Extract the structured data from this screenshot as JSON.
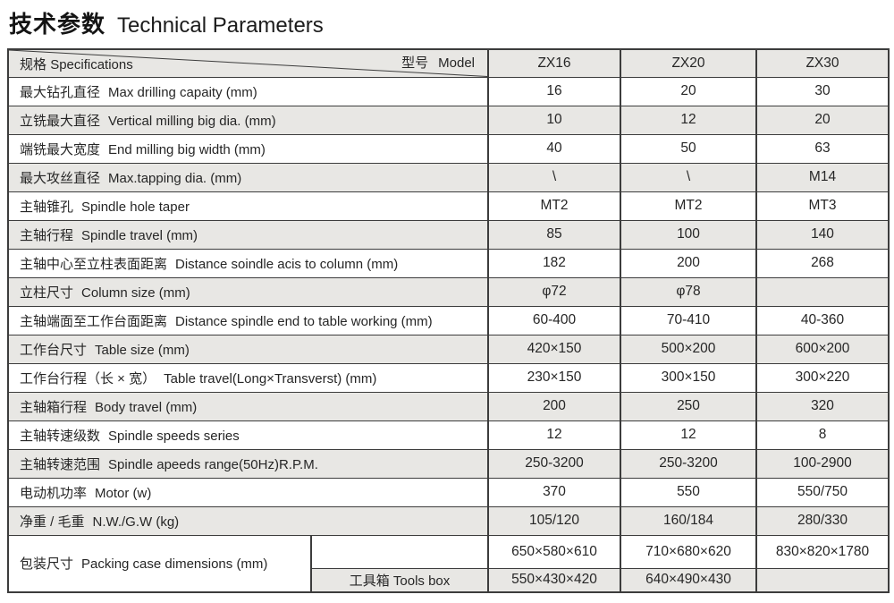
{
  "page_title": {
    "zh": "技术参数",
    "en": "Technical Parameters"
  },
  "colors": {
    "row_shade": "#e8e7e4",
    "border": "#3c3c3c",
    "text": "#262626"
  },
  "table": {
    "header": {
      "spec_zh": "规格",
      "spec_en": "Specifications",
      "model_zh": "型号",
      "model_en": "Model",
      "models": [
        "ZX16",
        "ZX20",
        "ZX30"
      ]
    },
    "rows": [
      {
        "zh": "最大钻孔直径",
        "en": "Max drilling capaity (mm)",
        "values": [
          "16",
          "20",
          "30"
        ]
      },
      {
        "zh": "立铣最大直径",
        "en": "Vertical milling big dia. (mm)",
        "values": [
          "10",
          "12",
          "20"
        ]
      },
      {
        "zh": "端铣最大宽度",
        "en": "End milling big width (mm)",
        "values": [
          "40",
          "50",
          "63"
        ]
      },
      {
        "zh": "最大攻丝直径",
        "en": "Max.tapping dia. (mm)",
        "values": [
          "\\",
          "\\",
          "M14"
        ]
      },
      {
        "zh": "主轴锥孔",
        "en": "Spindle hole taper",
        "values": [
          "MT2",
          "MT2",
          "MT3"
        ]
      },
      {
        "zh": "主轴行程",
        "en": "Spindle travel (mm)",
        "values": [
          "85",
          "100",
          "140"
        ]
      },
      {
        "zh": "主轴中心至立柱表面距离",
        "en": "Distance soindle acis to column (mm)",
        "values": [
          "182",
          "200",
          "268"
        ]
      },
      {
        "zh": "立柱尺寸",
        "en": "Column size (mm)",
        "values": [
          "φ72",
          "φ78",
          ""
        ]
      },
      {
        "zh": "主轴端面至工作台面距离",
        "en": "Distance spindle end to table working (mm)",
        "values": [
          "60-400",
          "70-410",
          "40-360"
        ]
      },
      {
        "zh": "工作台尺寸",
        "en": "Table size (mm)",
        "values": [
          "420×150",
          "500×200",
          "600×200"
        ]
      },
      {
        "zh": "工作台行程（长 × 宽）",
        "en": "Table travel(Long×Transverst) (mm)",
        "values": [
          "230×150",
          "300×150",
          "300×220"
        ]
      },
      {
        "zh": "主轴箱行程",
        "en": "Body travel (mm)",
        "values": [
          "200",
          "250",
          "320"
        ]
      },
      {
        "zh": "主轴转速级数",
        "en": "Spindle speeds series",
        "values": [
          "12",
          "12",
          "8"
        ]
      },
      {
        "zh": "主轴转速范围",
        "en": "Spindle apeeds range(50Hz)R.P.M.",
        "values": [
          "250-3200",
          "250-3200",
          "100-2900"
        ]
      },
      {
        "zh": "电动机功率",
        "en": "Motor (w)",
        "values": [
          "370",
          "550",
          "550/750"
        ]
      },
      {
        "zh": "净重 / 毛重",
        "en": "N.W./G.W (kg)",
        "values": [
          "105/120",
          "160/184",
          "280/330"
        ]
      }
    ],
    "packing": {
      "zh": "包装尺寸",
      "en": "Packing case dimensions (mm)",
      "rows": [
        {
          "sub": "",
          "values": [
            "650×580×610",
            "710×680×620",
            "830×820×1780"
          ]
        },
        {
          "sub": "工具箱 Tools box",
          "values": [
            "550×430×420",
            "640×490×430",
            ""
          ]
        }
      ]
    }
  }
}
